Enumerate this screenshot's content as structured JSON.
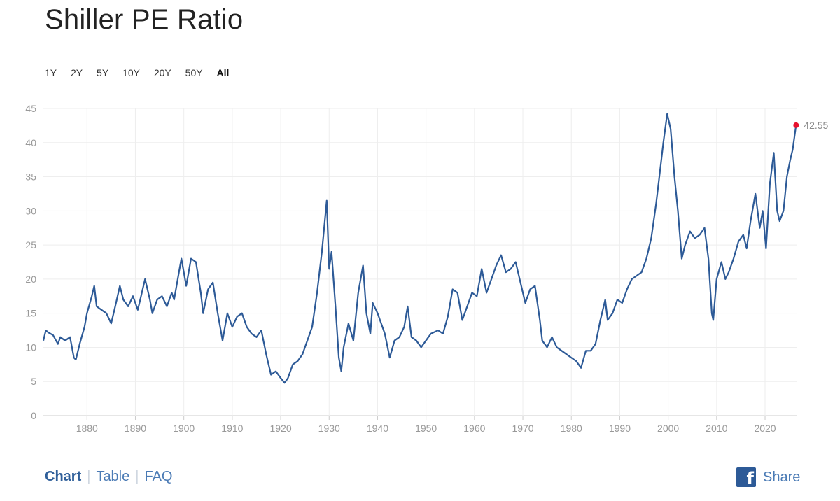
{
  "header": {
    "title": "Shiller PE Ratio"
  },
  "ranges": [
    {
      "label": "1Y",
      "active": false
    },
    {
      "label": "2Y",
      "active": false
    },
    {
      "label": "5Y",
      "active": false
    },
    {
      "label": "10Y",
      "active": false
    },
    {
      "label": "20Y",
      "active": false
    },
    {
      "label": "50Y",
      "active": false
    },
    {
      "label": "All",
      "active": true
    }
  ],
  "footer": {
    "tabs": [
      {
        "label": "Chart",
        "active": true
      },
      {
        "label": "Table",
        "active": false
      },
      {
        "label": "FAQ",
        "active": false
      }
    ],
    "share_label": "Share",
    "share_icon": "facebook-icon"
  },
  "colors": {
    "line": "#2d5a97",
    "marker": "#e8112d",
    "grid": "#eeeeee",
    "link": "#4b7bb5"
  },
  "chart_data": {
    "type": "line",
    "title": "Shiller PE Ratio",
    "xlabel": "",
    "ylabel": "",
    "xlim": [
      1871,
      2026.5
    ],
    "ylim": [
      0,
      45
    ],
    "x_ticks": [
      1880,
      1890,
      1900,
      1910,
      1920,
      1930,
      1940,
      1950,
      1960,
      1970,
      1980,
      1990,
      2000,
      2010,
      2020
    ],
    "y_ticks": [
      0,
      5,
      10,
      15,
      20,
      25,
      30,
      35,
      40,
      45
    ],
    "grid": true,
    "latest": {
      "x": 2026.4,
      "y": 42.55,
      "label": "42.55"
    },
    "series": [
      {
        "name": "",
        "points": [
          [
            1871.0,
            11.0
          ],
          [
            1871.5,
            12.5
          ],
          [
            1872.0,
            12.2
          ],
          [
            1873.0,
            11.8
          ],
          [
            1874.0,
            10.5
          ],
          [
            1874.5,
            11.5
          ],
          [
            1875.5,
            11.0
          ],
          [
            1876.5,
            11.5
          ],
          [
            1877.3,
            8.5
          ],
          [
            1877.7,
            8.2
          ],
          [
            1878.5,
            10.5
          ],
          [
            1879.5,
            13.0
          ],
          [
            1880.0,
            15.0
          ],
          [
            1881.0,
            17.5
          ],
          [
            1881.5,
            19.0
          ],
          [
            1882.0,
            16.0
          ],
          [
            1883.0,
            15.5
          ],
          [
            1884.0,
            15.0
          ],
          [
            1885.0,
            13.5
          ],
          [
            1886.0,
            16.5
          ],
          [
            1886.8,
            19.0
          ],
          [
            1887.5,
            17.0
          ],
          [
            1888.5,
            16.0
          ],
          [
            1889.5,
            17.5
          ],
          [
            1890.5,
            15.5
          ],
          [
            1891.0,
            17.0
          ],
          [
            1892.0,
            20.0
          ],
          [
            1893.0,
            17.0
          ],
          [
            1893.5,
            15.0
          ],
          [
            1894.5,
            17.0
          ],
          [
            1895.5,
            17.5
          ],
          [
            1896.5,
            16.0
          ],
          [
            1897.5,
            18.0
          ],
          [
            1898.0,
            17.0
          ],
          [
            1899.0,
            21.0
          ],
          [
            1899.5,
            23.0
          ],
          [
            1900.5,
            19.0
          ],
          [
            1901.5,
            23.0
          ],
          [
            1902.5,
            22.5
          ],
          [
            1903.5,
            18.0
          ],
          [
            1904.0,
            15.0
          ],
          [
            1905.0,
            18.5
          ],
          [
            1906.0,
            19.5
          ],
          [
            1907.0,
            15.0
          ],
          [
            1908.0,
            11.0
          ],
          [
            1909.0,
            15.0
          ],
          [
            1910.0,
            13.0
          ],
          [
            1911.0,
            14.5
          ],
          [
            1912.0,
            15.0
          ],
          [
            1913.0,
            13.0
          ],
          [
            1914.0,
            12.0
          ],
          [
            1915.0,
            11.5
          ],
          [
            1916.0,
            12.5
          ],
          [
            1917.0,
            9.0
          ],
          [
            1918.0,
            6.0
          ],
          [
            1919.0,
            6.5
          ],
          [
            1920.0,
            5.5
          ],
          [
            1920.8,
            4.8
          ],
          [
            1921.5,
            5.5
          ],
          [
            1922.5,
            7.5
          ],
          [
            1923.5,
            8.0
          ],
          [
            1924.5,
            9.0
          ],
          [
            1925.5,
            11.0
          ],
          [
            1926.5,
            13.0
          ],
          [
            1927.5,
            18.0
          ],
          [
            1928.5,
            24.0
          ],
          [
            1929.5,
            31.5
          ],
          [
            1930.0,
            21.5
          ],
          [
            1930.5,
            24.0
          ],
          [
            1931.3,
            16.0
          ],
          [
            1932.0,
            8.5
          ],
          [
            1932.5,
            6.5
          ],
          [
            1933.0,
            10.0
          ],
          [
            1934.0,
            13.5
          ],
          [
            1935.0,
            11.0
          ],
          [
            1936.0,
            18.0
          ],
          [
            1937.0,
            22.0
          ],
          [
            1937.7,
            15.0
          ],
          [
            1938.5,
            12.0
          ],
          [
            1939.0,
            16.5
          ],
          [
            1940.0,
            15.0
          ],
          [
            1941.5,
            12.0
          ],
          [
            1942.5,
            8.5
          ],
          [
            1943.5,
            11.0
          ],
          [
            1944.5,
            11.5
          ],
          [
            1945.5,
            13.0
          ],
          [
            1946.2,
            16.0
          ],
          [
            1947.0,
            11.5
          ],
          [
            1948.0,
            11.0
          ],
          [
            1949.0,
            10.0
          ],
          [
            1950.0,
            11.0
          ],
          [
            1951.0,
            12.0
          ],
          [
            1952.5,
            12.5
          ],
          [
            1953.5,
            12.0
          ],
          [
            1954.5,
            14.5
          ],
          [
            1955.5,
            18.5
          ],
          [
            1956.5,
            18.0
          ],
          [
            1957.5,
            14.0
          ],
          [
            1958.5,
            16.0
          ],
          [
            1959.5,
            18.0
          ],
          [
            1960.5,
            17.5
          ],
          [
            1961.5,
            21.5
          ],
          [
            1962.5,
            18.0
          ],
          [
            1963.5,
            20.0
          ],
          [
            1964.5,
            22.0
          ],
          [
            1965.5,
            23.5
          ],
          [
            1966.5,
            21.0
          ],
          [
            1967.5,
            21.5
          ],
          [
            1968.5,
            22.5
          ],
          [
            1969.5,
            19.5
          ],
          [
            1970.5,
            16.5
          ],
          [
            1971.5,
            18.5
          ],
          [
            1972.5,
            19.0
          ],
          [
            1973.5,
            14.0
          ],
          [
            1974.0,
            11.0
          ],
          [
            1975.0,
            10.0
          ],
          [
            1976.0,
            11.5
          ],
          [
            1977.0,
            10.0
          ],
          [
            1978.0,
            9.5
          ],
          [
            1979.0,
            9.0
          ],
          [
            1980.0,
            8.5
          ],
          [
            1981.0,
            8.0
          ],
          [
            1982.0,
            7.0
          ],
          [
            1983.0,
            9.5
          ],
          [
            1984.0,
            9.5
          ],
          [
            1985.0,
            10.5
          ],
          [
            1986.0,
            14.0
          ],
          [
            1987.0,
            17.0
          ],
          [
            1987.5,
            14.0
          ],
          [
            1988.5,
            15.0
          ],
          [
            1989.5,
            17.0
          ],
          [
            1990.5,
            16.5
          ],
          [
            1991.5,
            18.5
          ],
          [
            1992.5,
            20.0
          ],
          [
            1993.5,
            20.5
          ],
          [
            1994.5,
            21.0
          ],
          [
            1995.5,
            23.0
          ],
          [
            1996.5,
            26.0
          ],
          [
            1997.5,
            31.0
          ],
          [
            1998.5,
            37.0
          ],
          [
            1999.0,
            40.0
          ],
          [
            1999.8,
            44.2
          ],
          [
            2000.5,
            42.0
          ],
          [
            2001.3,
            35.0
          ],
          [
            2002.0,
            30.0
          ],
          [
            2002.8,
            23.0
          ],
          [
            2003.5,
            25.0
          ],
          [
            2004.5,
            27.0
          ],
          [
            2005.5,
            26.0
          ],
          [
            2006.5,
            26.5
          ],
          [
            2007.5,
            27.5
          ],
          [
            2008.3,
            23.0
          ],
          [
            2009.0,
            15.0
          ],
          [
            2009.3,
            14.0
          ],
          [
            2010.0,
            20.0
          ],
          [
            2011.0,
            22.5
          ],
          [
            2011.8,
            20.0
          ],
          [
            2012.5,
            21.0
          ],
          [
            2013.5,
            23.0
          ],
          [
            2014.5,
            25.5
          ],
          [
            2015.5,
            26.5
          ],
          [
            2016.2,
            24.5
          ],
          [
            2017.0,
            28.5
          ],
          [
            2018.0,
            32.5
          ],
          [
            2018.9,
            27.5
          ],
          [
            2019.5,
            30.0
          ],
          [
            2020.2,
            24.5
          ],
          [
            2021.0,
            34.0
          ],
          [
            2021.8,
            38.5
          ],
          [
            2022.5,
            30.0
          ],
          [
            2023.0,
            28.5
          ],
          [
            2023.8,
            30.0
          ],
          [
            2024.5,
            35.0
          ],
          [
            2025.2,
            37.5
          ],
          [
            2025.7,
            39.0
          ],
          [
            2026.4,
            42.55
          ]
        ]
      }
    ]
  }
}
